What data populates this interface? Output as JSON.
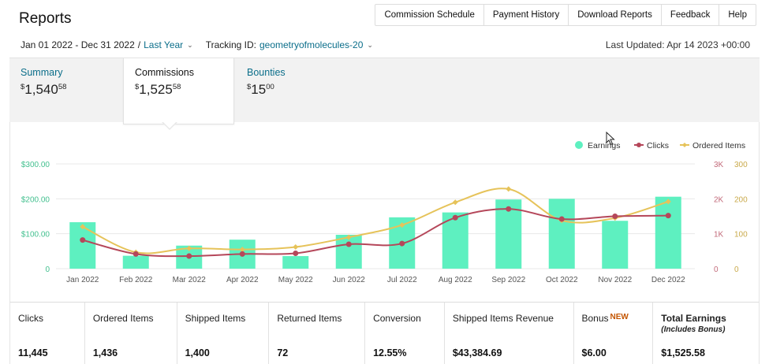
{
  "header": {
    "title": "Reports",
    "nav": [
      "Commission Schedule",
      "Payment History",
      "Download Reports",
      "Feedback",
      "Help"
    ]
  },
  "filters": {
    "date_range": "Jan 01 2022 - Dec 31 2022",
    "separator": "/",
    "period": "Last Year",
    "tracking_label": "Tracking ID:",
    "tracking_id": "geometryofmolecules-20",
    "chevron_icon": "chevron-down-icon",
    "last_updated": "Last Updated: Apr 14 2023 +00:00"
  },
  "tabs": {
    "summary": {
      "label": "Summary",
      "currency": "$",
      "whole": "1,540",
      "cents": "58"
    },
    "commissions": {
      "label": "Commissions",
      "currency": "$",
      "whole": "1,525",
      "cents": "58"
    },
    "bounties": {
      "label": "Bounties",
      "currency": "$",
      "whole": "15",
      "cents": "00"
    }
  },
  "chart_data": {
    "type": "bar",
    "categories": [
      "Jan 2022",
      "Feb 2022",
      "Mar 2022",
      "Apr 2022",
      "May 2022",
      "Jun 2022",
      "Jul 2022",
      "Aug 2022",
      "Sep 2022",
      "Oct 2022",
      "Nov 2022",
      "Dec 2022"
    ],
    "series": [
      {
        "name": "Earnings",
        "type": "bar",
        "axis": "left",
        "color": "#5ef0c0",
        "values": [
          133,
          37,
          66,
          83,
          36,
          97,
          147,
          161,
          198,
          200,
          137,
          206
        ]
      },
      {
        "name": "Clicks",
        "type": "line",
        "axis": "right-clicks",
        "color": "#b5475a",
        "values": [
          820,
          420,
          360,
          420,
          440,
          700,
          720,
          1460,
          1710,
          1420,
          1500,
          1520
        ]
      },
      {
        "name": "Ordered Items",
        "type": "line",
        "axis": "right-items",
        "color": "#e6c35a",
        "values": [
          120,
          47,
          58,
          55,
          62,
          90,
          125,
          190,
          228,
          138,
          145,
          192
        ]
      }
    ],
    "y_left": {
      "ticks": [
        "$300.00",
        "$200.00",
        "$100.00",
        "0"
      ],
      "range": [
        0,
        300
      ]
    },
    "y_right_clicks": {
      "ticks": [
        "3K",
        "2K",
        "1K",
        "0"
      ],
      "range": [
        0,
        3000
      ]
    },
    "y_right_items": {
      "ticks": [
        "300",
        "200",
        "100",
        "0"
      ],
      "range": [
        0,
        300
      ]
    },
    "colors": {
      "left_axis": "#43c08f",
      "clicks_axis": "#c26a7a",
      "items_axis": "#c9a94a"
    },
    "legend": {
      "position": "top-right",
      "items": [
        "Earnings",
        "Clicks",
        "Ordered Items"
      ]
    },
    "grid": true
  },
  "stats": [
    {
      "label": "Clicks",
      "value": "11,445"
    },
    {
      "label": "Ordered Items",
      "value": "1,436"
    },
    {
      "label": "Shipped Items",
      "value": "1,400"
    },
    {
      "label": "Returned Items",
      "value": "72"
    },
    {
      "label": "Conversion",
      "value": "12.55%"
    },
    {
      "label": "Shipped Items Revenue",
      "value": "$43,384.69"
    },
    {
      "label": "Bonus",
      "badge": "NEW",
      "value": "$6.00"
    },
    {
      "label": "Total Earnings",
      "sub": "(Includes Bonus)",
      "value": "$1,525.58"
    }
  ]
}
